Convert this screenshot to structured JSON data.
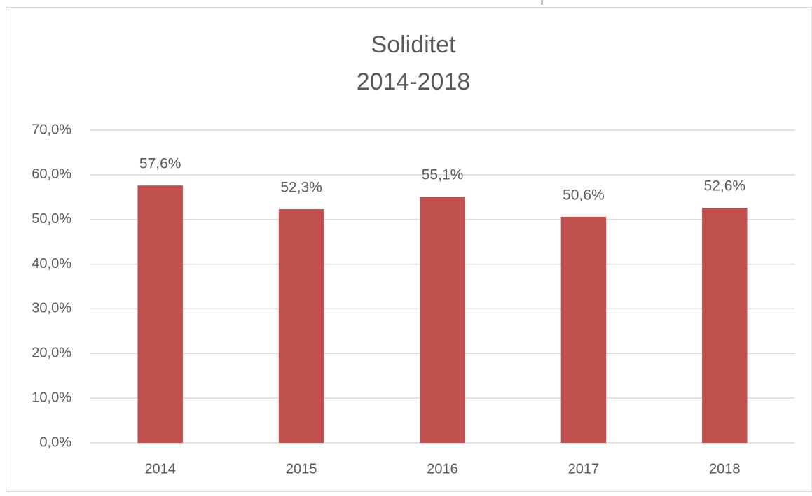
{
  "chart_data": {
    "type": "bar",
    "title": "Soliditet",
    "subtitle": "2014-2018",
    "categories": [
      "2014",
      "2015",
      "2016",
      "2017",
      "2018"
    ],
    "values": [
      57.6,
      52.3,
      55.1,
      50.6,
      52.6
    ],
    "value_labels": [
      "57,6%",
      "52,3%",
      "55,1%",
      "50,6%",
      "52,6%"
    ],
    "color": "#c0504d",
    "ylim": [
      0,
      70
    ],
    "yticks": [
      {
        "value": 0,
        "label": "0,0%"
      },
      {
        "value": 10,
        "label": "10,0%"
      },
      {
        "value": 20,
        "label": "20,0%"
      },
      {
        "value": 30,
        "label": "30,0%"
      },
      {
        "value": 40,
        "label": "40,0%"
      },
      {
        "value": 50,
        "label": "50,0%"
      },
      {
        "value": 60,
        "label": "60,0%"
      },
      {
        "value": 70,
        "label": "70,0%"
      }
    ],
    "grid": true
  }
}
